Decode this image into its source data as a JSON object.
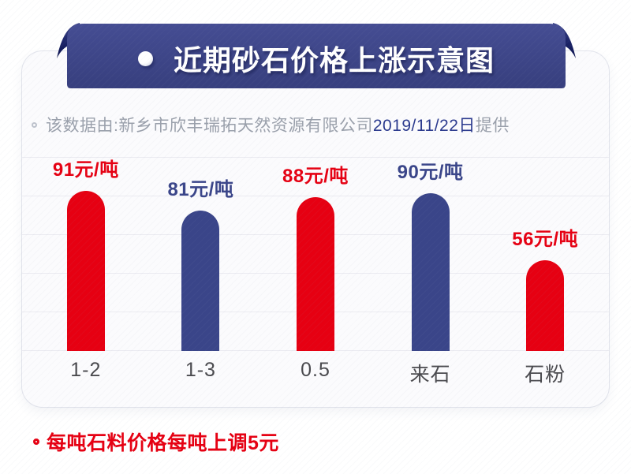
{
  "banner": {
    "title": "近期砂石价格上涨示意图"
  },
  "subtitle": {
    "prefix": "该数据由:新乡市欣丰瑞拓天然资源有限公司",
    "date": "2019/11/22日",
    "suffix": "提供"
  },
  "chart_data": {
    "type": "bar",
    "title": "近期砂石价格上涨示意图",
    "categories": [
      "1-2",
      "1-3",
      "0.5",
      "来石",
      "石粉"
    ],
    "values": [
      91,
      81,
      88,
      90,
      56
    ],
    "unit": "元/吨",
    "value_labels": [
      "91元/吨",
      "81元/吨",
      "88元/吨",
      "90元/吨",
      "56元/吨"
    ],
    "bar_colors": [
      "#e60012",
      "#3a4589",
      "#e60012",
      "#3a4589",
      "#e60012"
    ],
    "xlabel": "",
    "ylabel": "",
    "grid": true,
    "gridline_count": 6,
    "legend": false
  },
  "footer": {
    "note": "每吨石料价格每吨上调5元"
  },
  "colors": {
    "red": "#e60012",
    "bar_blue": "#3a4589",
    "banner_navy": "#3e4687",
    "banner_fold_dark": "#0c1350",
    "subtitle_gray": "#9aa0ab",
    "date_blue": "#2b3a8e",
    "axis_label": "#4a4a4e",
    "card_background": "#fbfbfd"
  }
}
